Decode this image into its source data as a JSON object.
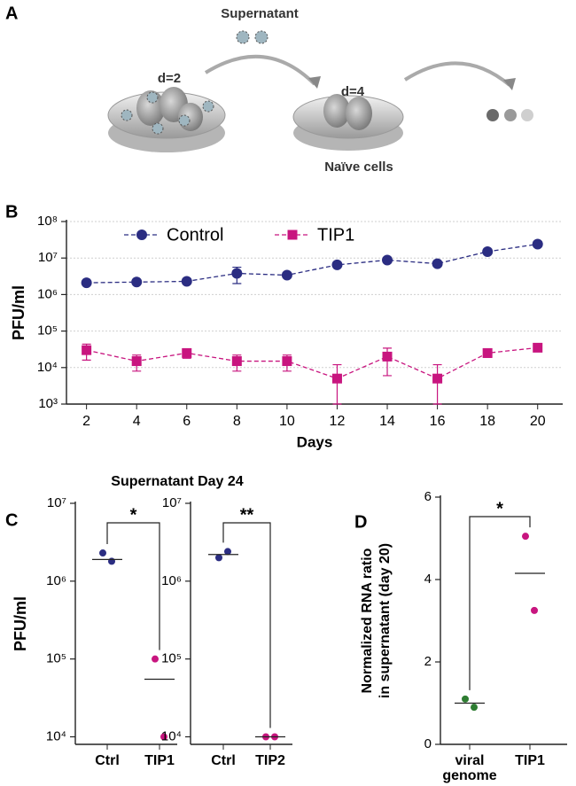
{
  "diagram": {
    "label": "A",
    "supernatant": "Supernatant",
    "day_left": "d=2",
    "day_right": "d=4",
    "caption": "Naïve cells"
  },
  "chart_data": [
    {
      "panel": "B",
      "type": "line",
      "x": [
        2,
        4,
        6,
        8,
        10,
        12,
        14,
        16,
        18,
        20
      ],
      "xlim": [
        1.2,
        21
      ],
      "xticks": [
        2,
        4,
        6,
        8,
        10,
        12,
        14,
        16,
        18,
        20
      ],
      "xlabel": "Days",
      "ylabel": "PFU/ml",
      "log_y": true,
      "ylim": [
        1000,
        100000000
      ],
      "yticks": [
        {
          "value": 1000,
          "label": "10³"
        },
        {
          "value": 10000,
          "label": "10⁴"
        },
        {
          "value": 100000,
          "label": "10⁵"
        },
        {
          "value": 1000000,
          "label": "10⁶"
        },
        {
          "value": 10000000,
          "label": "10⁷"
        },
        {
          "value": 100000000,
          "label": "10⁸"
        }
      ],
      "grid": true,
      "legend": "top-left",
      "series": [
        {
          "name": "Control",
          "color": "#2b2d82",
          "marker": "circle",
          "values": [
            2100000,
            2200000,
            2300000,
            3800000,
            3400000,
            6500000,
            8800000,
            7000000,
            15000000,
            24000000
          ],
          "errors": [
            null,
            null,
            null,
            1800000,
            null,
            null,
            null,
            null,
            null,
            null
          ]
        },
        {
          "name": "TIP1",
          "color": "#c8157f",
          "marker": "square",
          "values": [
            30000,
            15000,
            25000,
            15000,
            15000,
            5000,
            20000,
            5000,
            25000,
            35000
          ],
          "errors": [
            14000,
            7000,
            7000,
            7000,
            7000,
            7000,
            14000,
            7000,
            6000,
            3000
          ]
        }
      ]
    },
    {
      "panel": "C",
      "type": "dot",
      "title": "Supernatant Day 24",
      "ylabel": "PFU/ml",
      "log_y": true,
      "ylim": [
        8000,
        10000000
      ],
      "yticks": [
        {
          "value": 10000,
          "label": "10⁴"
        },
        {
          "value": 100000,
          "label": "10⁵"
        },
        {
          "value": 1000000,
          "label": "10⁶"
        },
        {
          "value": 10000000,
          "label": "10⁷"
        }
      ],
      "categories": [
        "Ctrl",
        "TIP1"
      ],
      "colors": [
        "#2b2d82",
        "#c8157f"
      ],
      "points": [
        [
          2300000,
          1800000
        ],
        [
          100000,
          10000
        ]
      ],
      "means": [
        1900000,
        55000
      ],
      "significance": "*"
    },
    {
      "type": "dot",
      "log_y": true,
      "ylim": [
        8000,
        10000000
      ],
      "yticks": [
        {
          "value": 10000,
          "label": "10⁴"
        },
        {
          "value": 100000,
          "label": "10⁵"
        },
        {
          "value": 1000000,
          "label": "10⁶"
        },
        {
          "value": 10000000,
          "label": "10⁷"
        }
      ],
      "categories": [
        "Ctrl",
        "TIP2"
      ],
      "colors": [
        "#2b2d82",
        "#c8157f"
      ],
      "points": [
        [
          2000000,
          2400000
        ],
        [
          10000,
          10000
        ]
      ],
      "means": [
        2200000,
        10000
      ],
      "significance": "**"
    },
    {
      "panel": "D",
      "type": "dot",
      "ylabel": [
        "Normalized RNA ratio",
        "in supernatant (day 20)"
      ],
      "ylim": [
        0,
        6
      ],
      "yticks": [
        0,
        2,
        4,
        6
      ],
      "categories": [
        "viral genome",
        "TIP1"
      ],
      "colors": [
        "#2e7d32",
        "#c8157f"
      ],
      "points": [
        [
          1.1,
          0.9
        ],
        [
          5.05,
          3.25
        ]
      ],
      "means": [
        1.0,
        4.15
      ],
      "significance": "*"
    }
  ]
}
